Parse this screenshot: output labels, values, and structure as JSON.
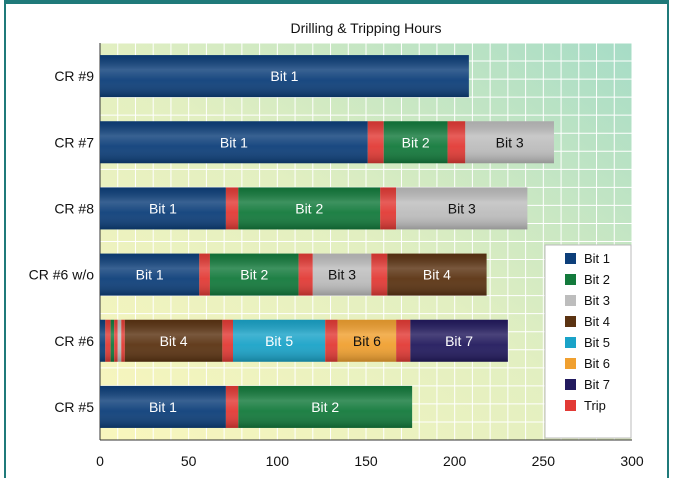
{
  "chart_data": {
    "type": "bar",
    "orientation": "horizontal",
    "stacked": true,
    "title": "Drilling & Tripping Hours",
    "xlabel": "",
    "ylabel": "",
    "xlim": [
      0,
      300
    ],
    "x_ticks": [
      0,
      50,
      100,
      150,
      200,
      250,
      300
    ],
    "grid": true,
    "legend_position": "right",
    "legend": [
      {
        "name": "Bit 1",
        "color": "#0d3f7a"
      },
      {
        "name": "Bit 2",
        "color": "#137a3c"
      },
      {
        "name": "Bit 3",
        "color": "#bdbdbd"
      },
      {
        "name": "Bit 4",
        "color": "#5b3312"
      },
      {
        "name": "Bit 5",
        "color": "#1aa3c8"
      },
      {
        "name": "Bit 6",
        "color": "#f0a030"
      },
      {
        "name": "Bit 7",
        "color": "#221a5e"
      },
      {
        "name": "Trip",
        "color": "#e23a35"
      }
    ],
    "categories": [
      "CR #9",
      "CR #7",
      "CR #8",
      "CR #6 w/o",
      "CR #6",
      "CR #5"
    ],
    "bars": [
      {
        "category": "CR #9",
        "segments": [
          {
            "series": "Bit 1",
            "value": 208,
            "label": "Bit 1"
          }
        ]
      },
      {
        "category": "CR #7",
        "segments": [
          {
            "series": "Bit 1",
            "value": 151,
            "label": "Bit 1"
          },
          {
            "series": "Trip",
            "value": 9,
            "label": ""
          },
          {
            "series": "Bit 2",
            "value": 36,
            "label": "Bit 2"
          },
          {
            "series": "Trip",
            "value": 10,
            "label": ""
          },
          {
            "series": "Bit 3",
            "value": 50,
            "label": "Bit 3"
          }
        ]
      },
      {
        "category": "CR #8",
        "segments": [
          {
            "series": "Bit 1",
            "value": 71,
            "label": "Bit 1"
          },
          {
            "series": "Trip",
            "value": 7,
            "label": ""
          },
          {
            "series": "Bit 2",
            "value": 80,
            "label": "Bit 2"
          },
          {
            "series": "Trip",
            "value": 9,
            "label": ""
          },
          {
            "series": "Bit 3",
            "value": 74,
            "label": "Bit 3"
          }
        ]
      },
      {
        "category": "CR #6 w/o",
        "segments": [
          {
            "series": "Bit 1",
            "value": 56,
            "label": "Bit 1"
          },
          {
            "series": "Trip",
            "value": 6,
            "label": ""
          },
          {
            "series": "Bit 2",
            "value": 50,
            "label": "Bit 2"
          },
          {
            "series": "Trip",
            "value": 8,
            "label": ""
          },
          {
            "series": "Bit 3",
            "value": 33,
            "label": "Bit 3"
          },
          {
            "series": "Trip",
            "value": 9,
            "label": ""
          },
          {
            "series": "Bit 4",
            "value": 56,
            "label": "Bit 4"
          }
        ]
      },
      {
        "category": "CR #6",
        "segments": [
          {
            "series": "Bit 1",
            "value": 3,
            "label": ""
          },
          {
            "series": "Trip",
            "value": 3,
            "label": ""
          },
          {
            "series": "Bit 2",
            "value": 2,
            "label": ""
          },
          {
            "series": "Trip",
            "value": 2,
            "label": ""
          },
          {
            "series": "Bit 3",
            "value": 2,
            "label": ""
          },
          {
            "series": "Trip",
            "value": 2,
            "label": ""
          },
          {
            "series": "Bit 4",
            "value": 55,
            "label": "Bit 4"
          },
          {
            "series": "Trip",
            "value": 6,
            "label": ""
          },
          {
            "series": "Bit 5",
            "value": 52,
            "label": "Bit 5"
          },
          {
            "series": "Trip",
            "value": 7,
            "label": ""
          },
          {
            "series": "Bit 6",
            "value": 33,
            "label": "Bit 6"
          },
          {
            "series": "Trip",
            "value": 8,
            "label": ""
          },
          {
            "series": "Bit 7",
            "value": 55,
            "label": "Bit 7"
          }
        ]
      },
      {
        "category": "CR #5",
        "segments": [
          {
            "series": "Bit 1",
            "value": 71,
            "label": "Bit 1"
          },
          {
            "series": "Trip",
            "value": 7,
            "label": ""
          },
          {
            "series": "Bit 2",
            "value": 98,
            "label": "Bit 2"
          }
        ]
      }
    ]
  }
}
